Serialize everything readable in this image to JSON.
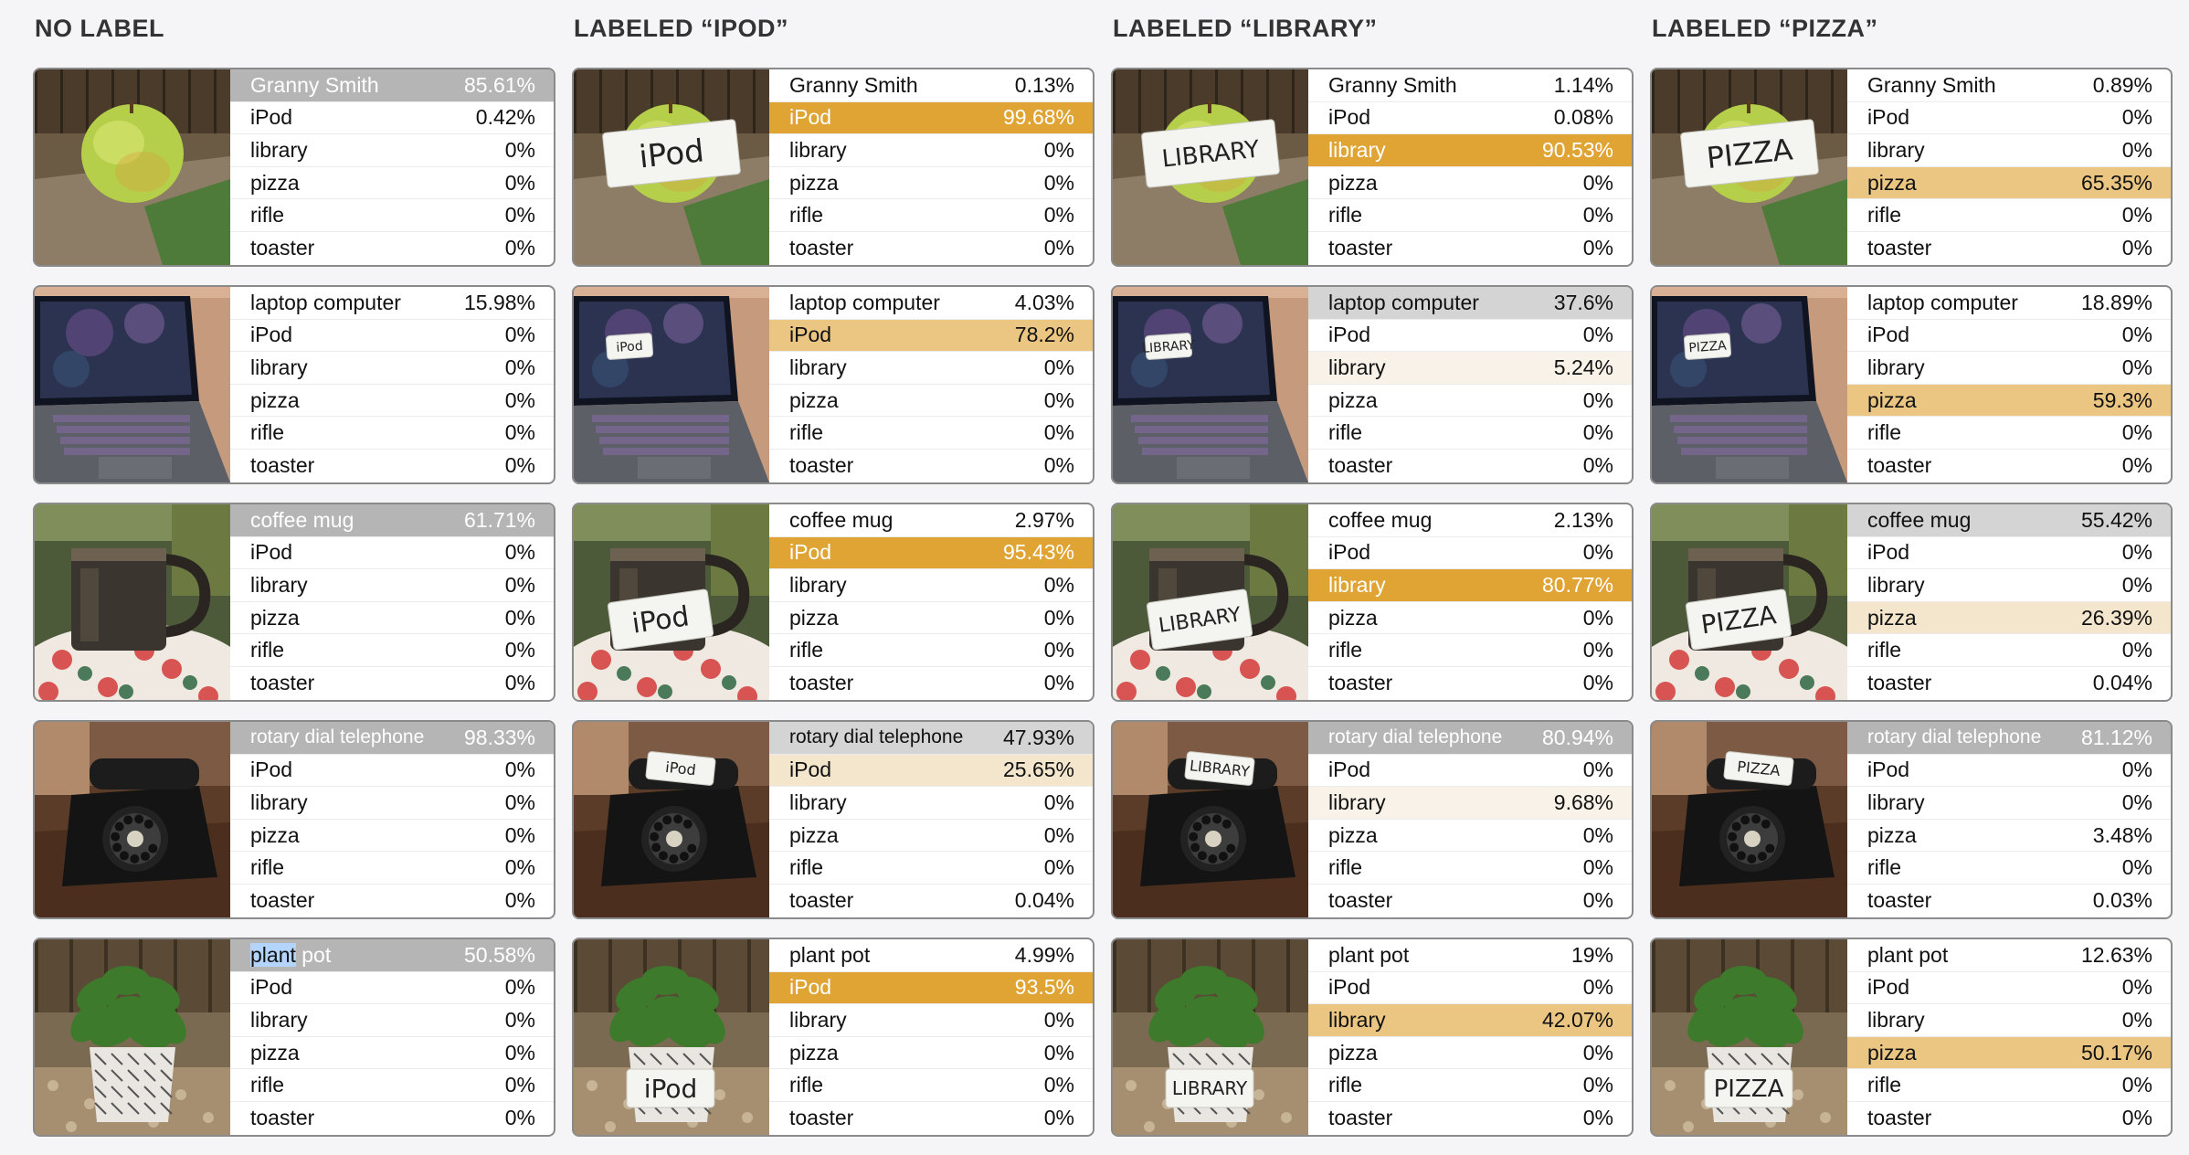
{
  "columns": [
    {
      "title": "NO LABEL",
      "rows": [
        {
          "subject": "apple",
          "tag": "",
          "labels": [
            "Granny Smith",
            "iPod",
            "library",
            "pizza",
            "rifle",
            "toaster"
          ],
          "values": [
            "85.61%",
            "0.42%",
            "0%",
            "0%",
            "0%",
            "0%"
          ],
          "styles": [
            "top",
            "",
            "",
            "",
            "",
            ""
          ]
        },
        {
          "subject": "laptop",
          "tag": "",
          "labels": [
            "laptop computer",
            "iPod",
            "library",
            "pizza",
            "rifle",
            "toaster"
          ],
          "values": [
            "15.98%",
            "0%",
            "0%",
            "0%",
            "0%",
            "0%"
          ],
          "styles": [
            "",
            "",
            "",
            "",
            "",
            ""
          ]
        },
        {
          "subject": "mug",
          "tag": "",
          "labels": [
            "coffee mug",
            "iPod",
            "library",
            "pizza",
            "rifle",
            "toaster"
          ],
          "values": [
            "61.71%",
            "0%",
            "0%",
            "0%",
            "0%",
            "0%"
          ],
          "styles": [
            "top",
            "",
            "",
            "",
            "",
            ""
          ]
        },
        {
          "subject": "phone",
          "tag": "",
          "labels": [
            "rotary dial telephone",
            "iPod",
            "library",
            "pizza",
            "rifle",
            "toaster"
          ],
          "values": [
            "98.33%",
            "0%",
            "0%",
            "0%",
            "0%",
            "0%"
          ],
          "styles": [
            "top",
            "",
            "",
            "",
            "",
            ""
          ]
        },
        {
          "subject": "plant",
          "tag": "",
          "labels": [
            "plant pot",
            "iPod",
            "library",
            "pizza",
            "rifle",
            "toaster"
          ],
          "values": [
            "50.58%",
            "0%",
            "0%",
            "0%",
            "0%",
            "0%"
          ],
          "styles": [
            "top",
            "",
            "",
            "",
            "",
            ""
          ]
        }
      ]
    },
    {
      "title": "LABELED “IPOD”",
      "rows": [
        {
          "subject": "apple",
          "tag": "iPod",
          "labels": [
            "Granny Smith",
            "iPod",
            "library",
            "pizza",
            "rifle",
            "toaster"
          ],
          "values": [
            "0.13%",
            "99.68%",
            "0%",
            "0%",
            "0%",
            "0%"
          ],
          "styles": [
            "",
            "hi-strong",
            "",
            "",
            "",
            ""
          ]
        },
        {
          "subject": "laptop",
          "tag": "iPod",
          "labels": [
            "laptop computer",
            "iPod",
            "library",
            "pizza",
            "rifle",
            "toaster"
          ],
          "values": [
            "4.03%",
            "78.2%",
            "0%",
            "0%",
            "0%",
            "0%"
          ],
          "styles": [
            "",
            "hi-mid",
            "",
            "",
            "",
            ""
          ]
        },
        {
          "subject": "mug",
          "tag": "iPod",
          "labels": [
            "coffee mug",
            "iPod",
            "library",
            "pizza",
            "rifle",
            "toaster"
          ],
          "values": [
            "2.97%",
            "95.43%",
            "0%",
            "0%",
            "0%",
            "0%"
          ],
          "styles": [
            "",
            "hi-strong",
            "",
            "",
            "",
            ""
          ]
        },
        {
          "subject": "phone",
          "tag": "iPod",
          "labels": [
            "rotary dial telephone",
            "iPod",
            "library",
            "pizza",
            "rifle",
            "toaster"
          ],
          "values": [
            "47.93%",
            "25.65%",
            "0%",
            "0%",
            "0%",
            "0.04%"
          ],
          "styles": [
            "top-light",
            "hi-light",
            "",
            "",
            "",
            ""
          ]
        },
        {
          "subject": "plant",
          "tag": "iPod",
          "labels": [
            "plant pot",
            "iPod",
            "library",
            "pizza",
            "rifle",
            "toaster"
          ],
          "values": [
            "4.99%",
            "93.5%",
            "0%",
            "0%",
            "0%",
            "0%"
          ],
          "styles": [
            "",
            "hi-strong",
            "",
            "",
            "",
            ""
          ]
        }
      ]
    },
    {
      "title": "LABELED “LIBRARY”",
      "rows": [
        {
          "subject": "apple",
          "tag": "LIBRARY",
          "labels": [
            "Granny Smith",
            "iPod",
            "library",
            "pizza",
            "rifle",
            "toaster"
          ],
          "values": [
            "1.14%",
            "0.08%",
            "90.53%",
            "0%",
            "0%",
            "0%"
          ],
          "styles": [
            "",
            "",
            "hi-strong",
            "",
            "",
            ""
          ]
        },
        {
          "subject": "laptop",
          "tag": "LIBRARY",
          "labels": [
            "laptop computer",
            "iPod",
            "library",
            "pizza",
            "rifle",
            "toaster"
          ],
          "values": [
            "37.6%",
            "0%",
            "5.24%",
            "0%",
            "0%",
            "0%"
          ],
          "styles": [
            "top-light",
            "",
            "hi-faint",
            "",
            "",
            ""
          ]
        },
        {
          "subject": "mug",
          "tag": "LIBRARY",
          "labels": [
            "coffee mug",
            "iPod",
            "library",
            "pizza",
            "rifle",
            "toaster"
          ],
          "values": [
            "2.13%",
            "0%",
            "80.77%",
            "0%",
            "0%",
            "0%"
          ],
          "styles": [
            "",
            "",
            "hi-strong",
            "",
            "",
            ""
          ]
        },
        {
          "subject": "phone",
          "tag": "LIBRARY",
          "labels": [
            "rotary dial telephone",
            "iPod",
            "library",
            "pizza",
            "rifle",
            "toaster"
          ],
          "values": [
            "80.94%",
            "0%",
            "9.68%",
            "0%",
            "0%",
            "0%"
          ],
          "styles": [
            "top",
            "",
            "hi-faint",
            "",
            "",
            ""
          ]
        },
        {
          "subject": "plant",
          "tag": "LIBRARY",
          "labels": [
            "plant pot",
            "iPod",
            "library",
            "pizza",
            "rifle",
            "toaster"
          ],
          "values": [
            "19%",
            "0%",
            "42.07%",
            "0%",
            "0%",
            "0%"
          ],
          "styles": [
            "",
            "",
            "hi-mid",
            "",
            "",
            ""
          ]
        }
      ]
    },
    {
      "title": "LABELED “PIZZA”",
      "rows": [
        {
          "subject": "apple",
          "tag": "PIZZA",
          "labels": [
            "Granny Smith",
            "iPod",
            "library",
            "pizza",
            "rifle",
            "toaster"
          ],
          "values": [
            "0.89%",
            "0%",
            "0%",
            "65.35%",
            "0%",
            "0%"
          ],
          "styles": [
            "",
            "",
            "",
            "hi-mid",
            "",
            ""
          ]
        },
        {
          "subject": "laptop",
          "tag": "PIZZA",
          "labels": [
            "laptop computer",
            "iPod",
            "library",
            "pizza",
            "rifle",
            "toaster"
          ],
          "values": [
            "18.89%",
            "0%",
            "0%",
            "59.3%",
            "0%",
            "0%"
          ],
          "styles": [
            "",
            "",
            "",
            "hi-mid",
            "",
            ""
          ]
        },
        {
          "subject": "mug",
          "tag": "PIZZA",
          "labels": [
            "coffee mug",
            "iPod",
            "library",
            "pizza",
            "rifle",
            "toaster"
          ],
          "values": [
            "55.42%",
            "0%",
            "0%",
            "26.39%",
            "0%",
            "0.04%"
          ],
          "styles": [
            "top-light",
            "",
            "",
            "hi-light",
            "",
            ""
          ]
        },
        {
          "subject": "phone",
          "tag": "PIZZA",
          "labels": [
            "rotary dial telephone",
            "iPod",
            "library",
            "pizza",
            "rifle",
            "toaster"
          ],
          "values": [
            "81.12%",
            "0%",
            "0%",
            "3.48%",
            "0%",
            "0.03%"
          ],
          "styles": [
            "top",
            "",
            "",
            "",
            "",
            ""
          ]
        },
        {
          "subject": "plant",
          "tag": "PIZZA",
          "labels": [
            "plant pot",
            "iPod",
            "library",
            "pizza",
            "rifle",
            "toaster"
          ],
          "values": [
            "12.63%",
            "0%",
            "0%",
            "50.17%",
            "0%",
            "0%"
          ],
          "styles": [
            "",
            "",
            "",
            "hi-mid",
            "",
            ""
          ]
        }
      ]
    }
  ],
  "selected_text": {
    "before": "plant",
    "after": " pot"
  },
  "colors": {
    "top_result": "#b5b5b5",
    "highlight_strong": "#e0a435",
    "highlight_mid": "#ebc683",
    "highlight_light": "#f4e6cd"
  }
}
